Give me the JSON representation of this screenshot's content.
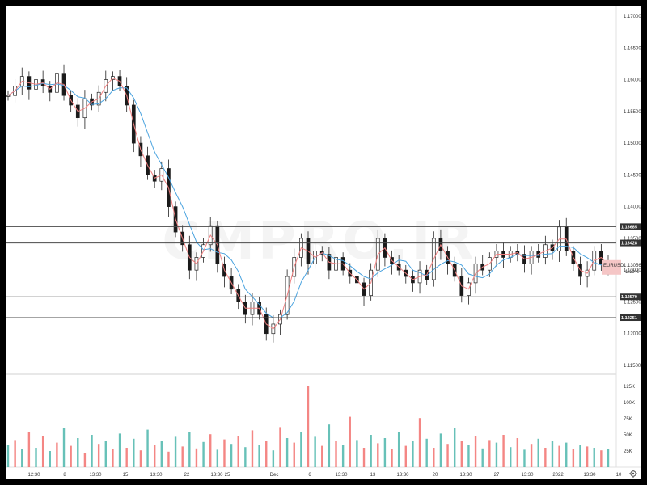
{
  "watermark": "CMPRO.IR",
  "colors": {
    "up": "#26a69a",
    "down": "#ef5350",
    "candle_body": "#1a1a1a",
    "ma_blue": "#4aa3df",
    "ma_pink": "#f08080",
    "level_line": "#4a4a4a",
    "price_label_bg": "#f5c6c6"
  },
  "price_axis": {
    "ticks": [
      "1.17000",
      "1.16500",
      "1.16000",
      "1.15500",
      "1.15000",
      "1.14500",
      "1.14000",
      "1.13500",
      "1.13000",
      "1.12500",
      "1.12000",
      "1.11500"
    ]
  },
  "volume_axis": {
    "ticks": [
      "125K",
      "100K",
      "75K",
      "50K",
      "25K"
    ]
  },
  "time_axis": {
    "ticks": [
      "12:30",
      "8",
      "13:30",
      "15",
      "13:30",
      "22",
      "13:30",
      "25",
      "Dec",
      "6",
      "13:30",
      "13",
      "13:30",
      "20",
      "13:30",
      "27",
      "13:30",
      "2022",
      "13:30",
      "10"
    ]
  },
  "levels": [
    {
      "label": "1.13685",
      "value": 1.13685
    },
    {
      "label": "1.13428",
      "value": 1.13428
    },
    {
      "label": "1.12579",
      "value": 1.12579
    },
    {
      "label": "1.12251",
      "value": 1.12251
    }
  ],
  "current_price": {
    "symbol": "EURUSD",
    "price": "1.13056",
    "change": "-1.19%",
    "value": 1.13056
  },
  "toolbar": {
    "settings_icon": "gear-icon"
  },
  "chart_data": {
    "type": "candlestick",
    "symbol": "EURUSD",
    "price_ylim": [
      1.115,
      1.17
    ],
    "volume_ylim": [
      0,
      125000
    ],
    "x_labels": [
      "12:30",
      "8",
      "13:30",
      "15",
      "13:30",
      "22",
      "13:30",
      "25",
      "Dec",
      "6",
      "13:30",
      "13",
      "13:30",
      "20",
      "13:30",
      "27",
      "13:30",
      "2022",
      "13:30",
      "10"
    ],
    "close_path": [
      1.1575,
      1.159,
      1.1605,
      1.1585,
      1.16,
      1.159,
      1.158,
      1.161,
      1.1575,
      1.156,
      1.154,
      1.157,
      1.156,
      1.158,
      1.16,
      1.1605,
      1.159,
      1.156,
      1.15,
      1.148,
      1.145,
      1.144,
      1.146,
      1.14,
      1.136,
      1.134,
      1.13,
      1.132,
      1.134,
      1.137,
      1.131,
      1.129,
      1.127,
      1.125,
      1.123,
      1.125,
      1.123,
      1.12,
      1.1215,
      1.123,
      1.129,
      1.132,
      1.135,
      1.131,
      1.133,
      1.1325,
      1.13,
      1.132,
      1.13,
      1.129,
      1.128,
      1.126,
      1.13,
      1.135,
      1.132,
      1.131,
      1.13,
      1.129,
      1.128,
      1.13,
      1.1285,
      1.135,
      1.133,
      1.131,
      1.129,
      1.126,
      1.128,
      1.131,
      1.13,
      1.132,
      1.133,
      1.132,
      1.133,
      1.1325,
      1.131,
      1.133,
      1.132,
      1.134,
      1.133,
      1.1368,
      1.133,
      1.131,
      1.129,
      1.13,
      1.133,
      1.131,
      1.1306
    ],
    "volume": [
      35000,
      42000,
      28000,
      55000,
      30000,
      48000,
      25000,
      38000,
      60000,
      33000,
      45000,
      22000,
      50000,
      36000,
      40000,
      28000,
      52000,
      30000,
      44000,
      26000,
      58000,
      35000,
      41000,
      24000,
      47000,
      32000,
      55000,
      29000,
      39000,
      51000,
      27000,
      43000,
      36000,
      48000,
      31000,
      57000,
      34000,
      40000,
      26000,
      62000,
      45000,
      38000,
      54000,
      125000,
      47000,
      33000,
      66000,
      40000,
      35000,
      78000,
      42000,
      30000,
      50000,
      37000,
      45000,
      28000,
      55000,
      33000,
      41000,
      76000,
      44000,
      30000,
      52000,
      36000,
      60000,
      40000,
      34000,
      48000,
      29000,
      42000,
      38000,
      50000,
      31000,
      45000,
      27000,
      36000,
      44000,
      30000,
      40000,
      33000,
      38000,
      28000,
      35000,
      32000,
      30000,
      26000,
      28000
    ]
  }
}
